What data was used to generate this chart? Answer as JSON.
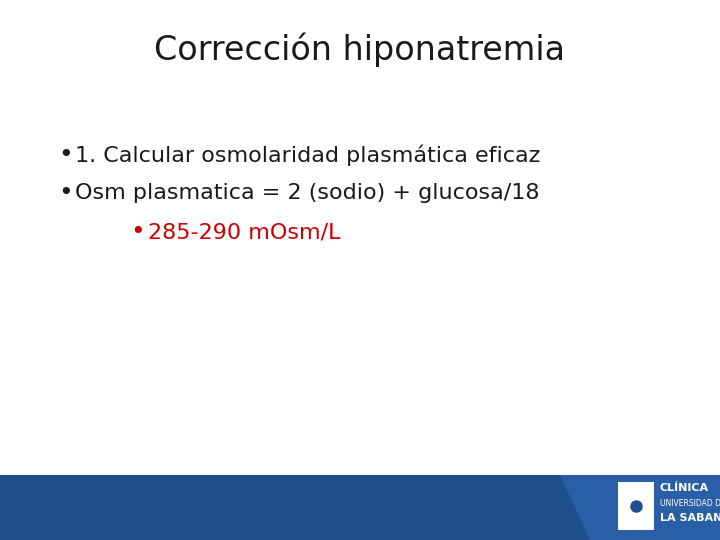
{
  "title": "Corrección hiponatremia",
  "title_fontsize": 24,
  "title_color": "#1a1a1a",
  "bullet1": "1. Calcular osmolaridad plasmática eficaz",
  "bullet2": "Osm plasmatica = 2 (sodio) + glucosa/18",
  "bullet3": "285-290 mOsm/L",
  "bullet_fontsize": 16,
  "bullet3_fontsize": 16,
  "bullet_color": "#1a1a1a",
  "bullet3_color": "#cc0000",
  "background_color": "#ffffff",
  "footer_color": "#1f4e8c",
  "footer_lighter_color": "#2a5fa8",
  "logo_text_line1": "CLÍNICA",
  "logo_text_line2": "UNIVERSIDAD DE",
  "logo_text_line3": "LA SABANA",
  "logo_text_color": "#ffffff",
  "logo_fontsize": 7
}
